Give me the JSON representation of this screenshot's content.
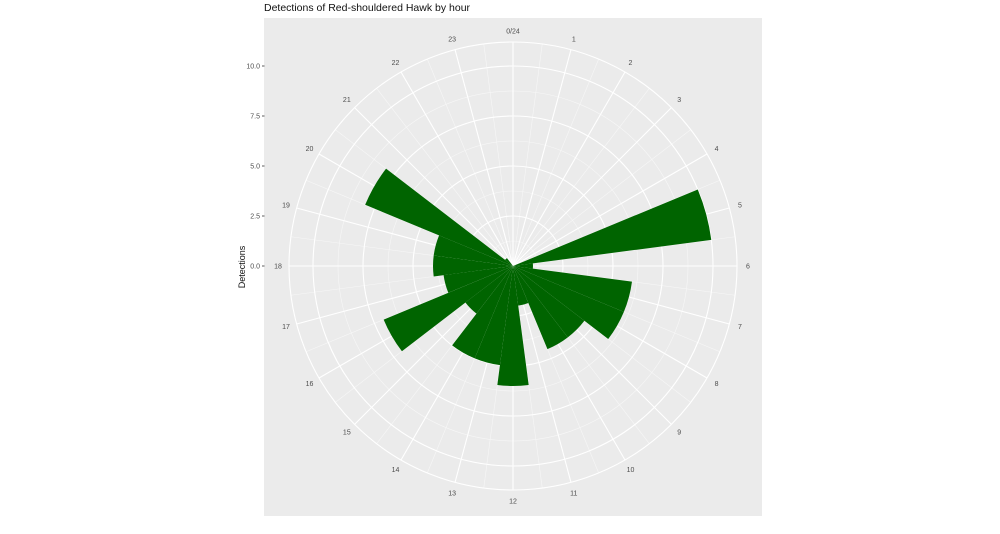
{
  "chart_data": {
    "type": "bar",
    "coord": "polar",
    "title": "Detections of Red-shouldered Hawk by hour",
    "ylabel": "Detections",
    "xlabel": "",
    "hours": [
      0,
      1,
      2,
      3,
      4,
      5,
      6,
      7,
      8,
      9,
      10,
      11,
      12,
      13,
      14,
      15,
      16,
      17,
      18,
      19,
      20,
      21,
      22,
      23
    ],
    "values": [
      0,
      0,
      0,
      0,
      0,
      10.0,
      1.0,
      6.0,
      6.0,
      4.5,
      4.5,
      2.0,
      6.0,
      5.0,
      5.0,
      3.0,
      7.0,
      3.5,
      4.0,
      4.0,
      8.0,
      0.5,
      0,
      0
    ],
    "y_ticks": [
      0.0,
      2.5,
      5.0,
      7.5,
      10.0
    ],
    "y_tick_labels": [
      "0.0",
      "2.5",
      "5.0",
      "7.5",
      "10.0"
    ],
    "x_tick_labels": [
      "0/24",
      "1",
      "2",
      "3",
      "4",
      "5",
      "6",
      "7",
      "8",
      "9",
      "10",
      "11",
      "12",
      "13",
      "14",
      "15",
      "16",
      "17",
      "18",
      "19",
      "20",
      "21",
      "22",
      "23"
    ],
    "ylim": [
      0,
      11.2
    ],
    "grid": true,
    "legend": "none",
    "bar_color": "#006400",
    "panel_color": "#ebebeb"
  }
}
